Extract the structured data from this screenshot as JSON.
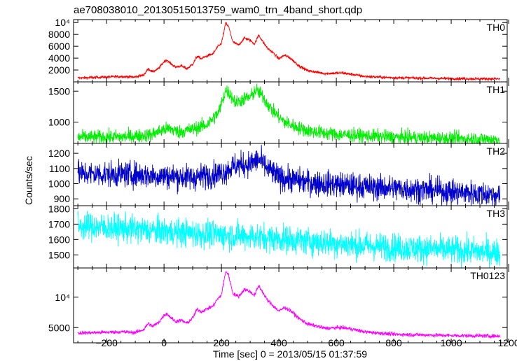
{
  "title": "ae708038010_20130515013759_wam0_trn_4band_short.qdp",
  "ylabel": "Counts/sec",
  "xlabel": "Time [sec] 0 = 2013/05/15 01:37:59",
  "x_tick_labels": [
    "−200",
    "0",
    "200",
    "400",
    "600",
    "800",
    "1000",
    "1200"
  ],
  "chart_data": [
    {
      "type": "line",
      "name": "TH0",
      "color": "#ff0000",
      "xlim": [
        -315,
        1195
      ],
      "ylim": [
        0,
        10500
      ],
      "y_ticks": [
        {
          "value": 2000,
          "label": "2000"
        },
        {
          "value": 4000,
          "label": "4000"
        },
        {
          "value": 6000,
          "label": "6000"
        },
        {
          "value": 8000,
          "label": "8000"
        },
        {
          "value": 10000,
          "label": "10⁴"
        }
      ],
      "baseline": [
        [
          -300,
          650
        ],
        [
          -150,
          900
        ],
        [
          -100,
          800
        ],
        [
          -70,
          1200
        ],
        [
          -55,
          2200
        ],
        [
          -40,
          1700
        ],
        [
          -20,
          2200
        ],
        [
          0,
          3400
        ],
        [
          10,
          3700
        ],
        [
          20,
          3200
        ],
        [
          40,
          2500
        ],
        [
          60,
          2700
        ],
        [
          80,
          2200
        ],
        [
          100,
          3000
        ],
        [
          115,
          4300
        ],
        [
          130,
          3900
        ],
        [
          150,
          4400
        ],
        [
          170,
          4700
        ],
        [
          185,
          5800
        ],
        [
          200,
          6500
        ],
        [
          215,
          9900
        ],
        [
          225,
          9300
        ],
        [
          240,
          6700
        ],
        [
          260,
          6200
        ],
        [
          280,
          7400
        ],
        [
          300,
          7000
        ],
        [
          315,
          6400
        ],
        [
          330,
          7900
        ],
        [
          345,
          6700
        ],
        [
          360,
          5700
        ],
        [
          380,
          4900
        ],
        [
          400,
          3900
        ],
        [
          420,
          4500
        ],
        [
          440,
          4000
        ],
        [
          470,
          2700
        ],
        [
          500,
          1900
        ],
        [
          560,
          1400
        ],
        [
          620,
          1500
        ],
        [
          650,
          1300
        ],
        [
          700,
          900
        ],
        [
          800,
          700
        ],
        [
          1000,
          550
        ],
        [
          1170,
          500
        ]
      ],
      "noise": 170
    },
    {
      "type": "line",
      "name": "TH1",
      "color": "#00ee00",
      "xlim": [
        -315,
        1195
      ],
      "ylim": [
        655,
        1650
      ],
      "y_ticks": [
        {
          "value": 1000,
          "label": "1000"
        },
        {
          "value": 1500,
          "label": "1500"
        }
      ],
      "baseline": [
        [
          -300,
          755
        ],
        [
          -150,
          760
        ],
        [
          -50,
          790
        ],
        [
          0,
          880
        ],
        [
          20,
          895
        ],
        [
          50,
          840
        ],
        [
          100,
          885
        ],
        [
          150,
          960
        ],
        [
          190,
          1150
        ],
        [
          215,
          1520
        ],
        [
          230,
          1450
        ],
        [
          250,
          1310
        ],
        [
          280,
          1380
        ],
        [
          300,
          1400
        ],
        [
          320,
          1520
        ],
        [
          340,
          1440
        ],
        [
          360,
          1300
        ],
        [
          380,
          1170
        ],
        [
          420,
          1000
        ],
        [
          460,
          920
        ],
        [
          500,
          860
        ],
        [
          600,
          800
        ],
        [
          800,
          755
        ],
        [
          1000,
          735
        ],
        [
          1170,
          720
        ]
      ],
      "noise": 80
    },
    {
      "type": "line",
      "name": "TH2",
      "color": "#0000cc",
      "xlim": [
        -315,
        1195
      ],
      "ylim": [
        855,
        1265
      ],
      "y_ticks": [
        {
          "value": 900,
          "label": "900"
        },
        {
          "value": 1000,
          "label": "1000"
        },
        {
          "value": 1100,
          "label": "1100"
        },
        {
          "value": 1200,
          "label": "1200"
        }
      ],
      "baseline": [
        [
          -300,
          1065
        ],
        [
          -100,
          1060
        ],
        [
          0,
          1050
        ],
        [
          100,
          1040
        ],
        [
          200,
          1070
        ],
        [
          250,
          1120
        ],
        [
          300,
          1130
        ],
        [
          330,
          1160
        ],
        [
          360,
          1100
        ],
        [
          400,
          1040
        ],
        [
          500,
          1010
        ],
        [
          700,
          980
        ],
        [
          900,
          960
        ],
        [
          1170,
          925
        ]
      ],
      "noise": 60
    },
    {
      "type": "line",
      "name": "TH3",
      "color": "#00ffff",
      "xlim": [
        -315,
        1195
      ],
      "ylim": [
        1415,
        1820
      ],
      "y_ticks": [
        {
          "value": 1500,
          "label": "1500"
        },
        {
          "value": 1600,
          "label": "1600"
        },
        {
          "value": 1700,
          "label": "1700"
        },
        {
          "value": 1800,
          "label": "1800"
        }
      ],
      "baseline": [
        [
          -300,
          1690
        ],
        [
          -100,
          1665
        ],
        [
          100,
          1640
        ],
        [
          300,
          1620
        ],
        [
          500,
          1590
        ],
        [
          700,
          1560
        ],
        [
          900,
          1540
        ],
        [
          1170,
          1515
        ]
      ],
      "noise": 65
    },
    {
      "type": "line",
      "name": "TH0123",
      "color": "#ff00ff",
      "xlim": [
        -315,
        1195
      ],
      "ylim": [
        2500,
        14800
      ],
      "y_ticks": [
        {
          "value": 5000,
          "label": "5000"
        },
        {
          "value": 10000,
          "label": "10⁴"
        }
      ],
      "baseline": [
        [
          -300,
          4100
        ],
        [
          -150,
          4300
        ],
        [
          -100,
          4200
        ],
        [
          -70,
          4700
        ],
        [
          -55,
          5700
        ],
        [
          -40,
          5200
        ],
        [
          -20,
          5800
        ],
        [
          0,
          7000
        ],
        [
          10,
          7300
        ],
        [
          20,
          6800
        ],
        [
          40,
          6000
        ],
        [
          60,
          6200
        ],
        [
          80,
          5700
        ],
        [
          100,
          6600
        ],
        [
          115,
          8000
        ],
        [
          130,
          7600
        ],
        [
          150,
          8100
        ],
        [
          170,
          8500
        ],
        [
          185,
          9600
        ],
        [
          200,
          10400
        ],
        [
          215,
          14300
        ],
        [
          225,
          13600
        ],
        [
          240,
          10600
        ],
        [
          260,
          10100
        ],
        [
          280,
          11300
        ],
        [
          300,
          10900
        ],
        [
          315,
          10300
        ],
        [
          330,
          11900
        ],
        [
          345,
          10700
        ],
        [
          360,
          9500
        ],
        [
          380,
          8600
        ],
        [
          400,
          7700
        ],
        [
          420,
          8300
        ],
        [
          440,
          7800
        ],
        [
          470,
          6500
        ],
        [
          500,
          5600
        ],
        [
          560,
          4900
        ],
        [
          620,
          5000
        ],
        [
          650,
          4800
        ],
        [
          700,
          4300
        ],
        [
          800,
          3900
        ],
        [
          1000,
          3700
        ],
        [
          1170,
          3600
        ]
      ],
      "noise": 220
    }
  ]
}
